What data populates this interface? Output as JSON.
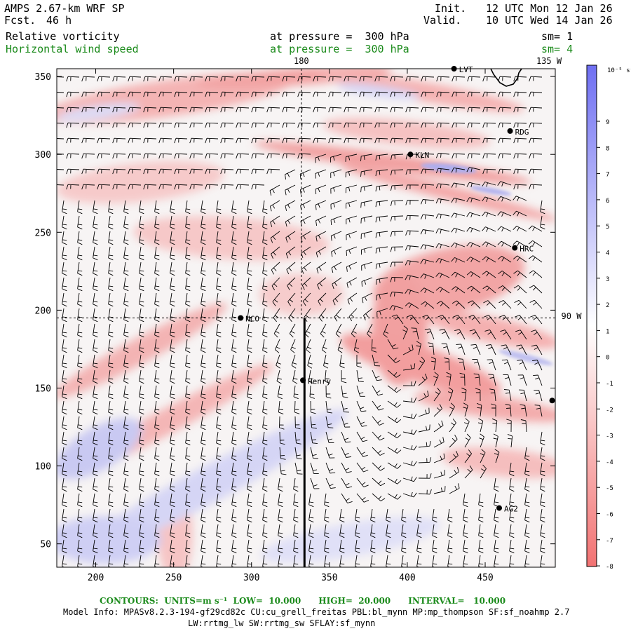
{
  "header": {
    "title": "AMPS 2.67-km WRF SP",
    "fcst_label": "Fcst.",
    "fcst_value": "46 h",
    "init_label": "Init.",
    "init_value": "12 UTC Mon 12 Jan 26",
    "valid_label": "Valid.",
    "valid_value": "10 UTC Wed 14 Jan 26",
    "field1": "Relative vorticity",
    "field1_pressure": "at pressure =  300 hPa",
    "field1_sm": "sm= 1",
    "field2": "Horizontal wind speed",
    "field2_pressure": "at pressure =  300 hPa",
    "field2_sm": "sm= 4"
  },
  "map": {
    "xlim": [
      175,
      495
    ],
    "ylim": [
      35,
      355
    ],
    "x_ticks": [
      200,
      250,
      300,
      350,
      400,
      450
    ],
    "y_ticks": [
      50,
      100,
      150,
      200,
      250,
      300,
      350
    ],
    "meridian_labels": {
      "top_180": "180",
      "top_135w": "135 W",
      "right_90w": "90 W"
    },
    "meridian_180_x": 332,
    "parallel_y": 195,
    "section_line": {
      "x": 334,
      "y_start": 35,
      "y_end": 195
    },
    "stations": [
      {
        "name": "LVT",
        "x": 430,
        "y": 355
      },
      {
        "name": "RDG",
        "x": 466,
        "y": 315
      },
      {
        "name": "KLN",
        "x": 402,
        "y": 300
      },
      {
        "name": "HRC",
        "x": 469,
        "y": 240
      },
      {
        "name": "NCO",
        "x": 293,
        "y": 195
      },
      {
        "name": "Henry",
        "x": 333,
        "y": 155
      },
      {
        "name": "",
        "x": 493,
        "y": 142
      },
      {
        "name": "AG2",
        "x": 459,
        "y": 73
      }
    ]
  },
  "colorbar": {
    "unit": "10⁻⁵ s⁻¹",
    "ticks": [
      9,
      8,
      7,
      6,
      5,
      4,
      3,
      2,
      1,
      0,
      -1,
      -2,
      -3,
      -4,
      -5,
      -6,
      -7,
      -8
    ],
    "max_color": "#6f6ff2",
    "zero_color": "#ffffff",
    "min_color": "#f27272"
  },
  "footer": {
    "contours_line": "CONTOURS:  UNITS=m s⁻¹  LOW=  10.000      HIGH=  20.000      INTERVAL=   10.000",
    "model_info": "Model Info: MPASv8.2.3-194-gf29cd82c CU:cu_grell_freitas PBL:bl_mynn MP:mp_thompson SF:sf_noahmp 2.7",
    "physics": "LW:rrtmg_lw SW:rrtmg_sw SFLAY:sf_mynn"
  }
}
